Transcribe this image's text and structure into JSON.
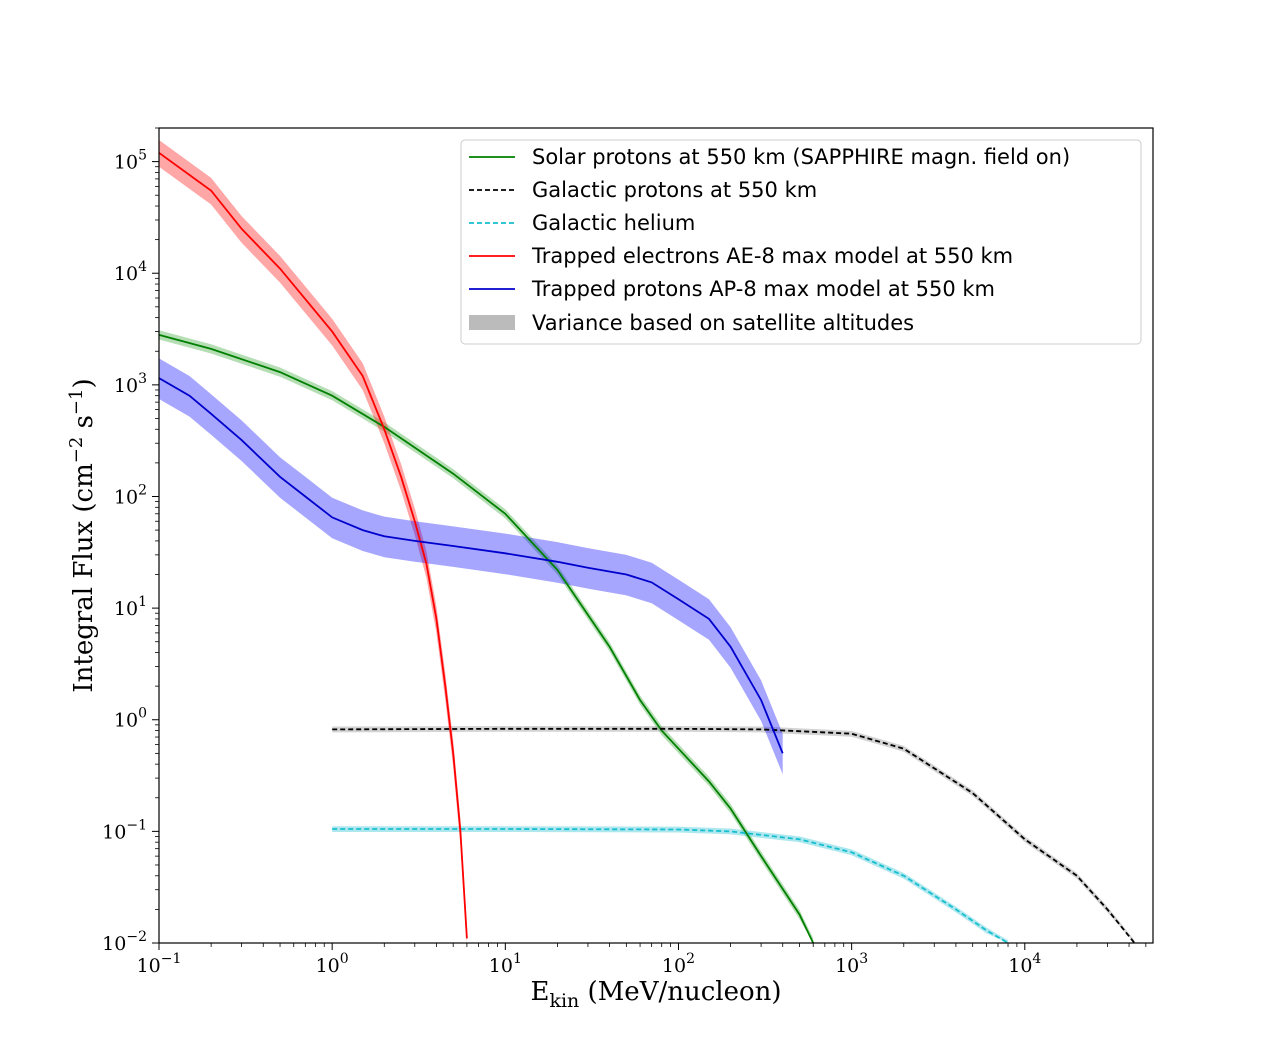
{
  "chart_data": {
    "type": "line",
    "title": "",
    "xlabel": "E",
    "xlabel_sub": "kin",
    "xlabel_rest": " (MeV/nucleon)",
    "ylabel": "Integral Flux (cm",
    "ylabel_exp1": "−2",
    "ylabel_mid": " s",
    "ylabel_exp2": "−1",
    "ylabel_end": ")",
    "xscale": "log",
    "yscale": "log",
    "xlim": [
      0.1,
      55000
    ],
    "ylim": [
      0.01,
      200000
    ],
    "xticks": [
      {
        "value": 0.1,
        "base": "10",
        "exp": "−1"
      },
      {
        "value": 1,
        "base": "10",
        "exp": "0"
      },
      {
        "value": 10,
        "base": "10",
        "exp": "1"
      },
      {
        "value": 100,
        "base": "10",
        "exp": "2"
      },
      {
        "value": 1000,
        "base": "10",
        "exp": "3"
      },
      {
        "value": 10000,
        "base": "10",
        "exp": "4"
      }
    ],
    "yticks": [
      {
        "value": 0.01,
        "base": "10",
        "exp": "−2"
      },
      {
        "value": 0.1,
        "base": "10",
        "exp": "−1"
      },
      {
        "value": 1,
        "base": "10",
        "exp": "0"
      },
      {
        "value": 10,
        "base": "10",
        "exp": "1"
      },
      {
        "value": 100,
        "base": "10",
        "exp": "2"
      },
      {
        "value": 1000,
        "base": "10",
        "exp": "3"
      },
      {
        "value": 10000,
        "base": "10",
        "exp": "4"
      },
      {
        "value": 100000,
        "base": "10",
        "exp": "5"
      }
    ],
    "legend_position": "upper right",
    "series": [
      {
        "name": "Solar protons at 550 km (SAPPHIRE magn. field on)",
        "color": "#008000",
        "band_color": "#2ca02c",
        "style": "solid",
        "x": [
          0.1,
          0.2,
          0.5,
          1,
          2,
          5,
          10,
          20,
          40,
          60,
          80,
          100,
          150,
          200,
          300,
          500,
          600
        ],
        "y": [
          2800,
          2100,
          1300,
          800,
          420,
          160,
          70,
          22,
          4.5,
          1.5,
          0.8,
          0.55,
          0.28,
          0.16,
          0.06,
          0.018,
          0.01
        ],
        "band": [
          1.1,
          0.91
        ]
      },
      {
        "name": "Galactic protons at 550 km",
        "color": "#000000",
        "band_color": "#808080",
        "style": "dashed",
        "x": [
          1,
          10,
          100,
          300,
          1000,
          2000,
          5000,
          10000,
          20000,
          30000,
          43000
        ],
        "y": [
          0.82,
          0.83,
          0.83,
          0.82,
          0.75,
          0.55,
          0.22,
          0.085,
          0.04,
          0.02,
          0.01
        ],
        "band": [
          1.06,
          0.94
        ]
      },
      {
        "name": "Galactic helium",
        "color": "#17becf",
        "band_color": "#17becf",
        "style": "dashed",
        "x": [
          1,
          10,
          100,
          200,
          500,
          1000,
          2000,
          4000,
          6000,
          8000
        ],
        "y": [
          0.105,
          0.105,
          0.104,
          0.1,
          0.085,
          0.065,
          0.04,
          0.02,
          0.013,
          0.01
        ],
        "band": [
          1.06,
          0.94
        ]
      },
      {
        "name": "Trapped electrons AE-8 max model at 550 km",
        "color": "#ff0000",
        "band_color": "#ff0000",
        "style": "solid",
        "x": [
          0.1,
          0.2,
          0.3,
          0.5,
          1,
          1.5,
          2,
          2.5,
          3,
          3.5,
          4,
          4.5,
          5,
          5.5,
          6
        ],
        "y": [
          120000,
          55000,
          25000,
          11000,
          3000,
          1200,
          400,
          150,
          60,
          25,
          8,
          2,
          0.5,
          0.1,
          0.011
        ],
        "band": [
          1.3,
          0.75
        ]
      },
      {
        "name": "Trapped protons AP-8 max model at 550 km",
        "color": "#0000cc",
        "band_color": "#0000ff",
        "style": "solid",
        "x": [
          0.1,
          0.15,
          0.2,
          0.3,
          0.5,
          0.7,
          1,
          1.5,
          2,
          3,
          5,
          10,
          20,
          30,
          50,
          70,
          100,
          150,
          200,
          300,
          400
        ],
        "y": [
          1150,
          800,
          550,
          320,
          150,
          100,
          65,
          50,
          44,
          40,
          36,
          31,
          26,
          23,
          20,
          17,
          12,
          8,
          4.5,
          1.5,
          0.5
        ],
        "band": [
          1.5,
          0.65
        ]
      }
    ],
    "variance_label": "Variance based on satellite altitudes",
    "variance_color": "#bbbbbb"
  }
}
